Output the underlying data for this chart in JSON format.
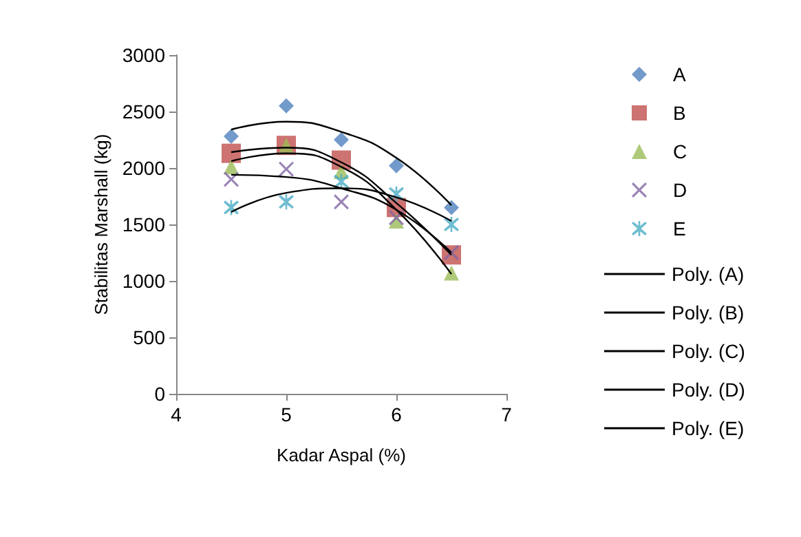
{
  "chart_data": {
    "type": "scatter",
    "xlabel": "Kadar Aspal (%)",
    "ylabel": "Stabilitas Marshall (kg)",
    "x": [
      4.5,
      5,
      5.5,
      6,
      6.5
    ],
    "xlim": [
      4,
      7
    ],
    "xticks": [
      4,
      5,
      6,
      7
    ],
    "ylim": [
      0,
      3000
    ],
    "yticks": [
      0,
      500,
      1000,
      1500,
      2000,
      2500,
      3000
    ],
    "grid": false,
    "legend": "right",
    "series": [
      {
        "name": "A",
        "color": "#4f81bd",
        "marker": "diamond",
        "values": [
          2280,
          2550,
          2250,
          2020,
          1650
        ]
      },
      {
        "name": "B",
        "color": "#c0504d",
        "marker": "square",
        "values": [
          2130,
          2200,
          2070,
          1650,
          1230
        ]
      },
      {
        "name": "C",
        "color": "#9bbb59",
        "marker": "triangle",
        "values": [
          2010,
          2200,
          1970,
          1530,
          1070
        ]
      },
      {
        "name": "D",
        "color": "#8064a2",
        "marker": "cross",
        "values": [
          1900,
          1990,
          1700,
          1560,
          1250
        ]
      },
      {
        "name": "E",
        "color": "#4bacc6",
        "marker": "star",
        "values": [
          1650,
          1700,
          1880,
          1770,
          1500
        ]
      },
      {
        "name": "Poly. (A)",
        "type": "line",
        "color": "#000000",
        "marker": "none",
        "x": [
          4.5,
          5,
          5.5,
          6,
          6.5
        ],
        "values": [
          2340,
          2410,
          2320,
          2090,
          1670
        ]
      },
      {
        "name": "Poly. (B)",
        "type": "line",
        "color": "#000000",
        "marker": "none",
        "x": [
          4.5,
          5,
          5.5,
          6,
          6.5
        ],
        "values": [
          2140,
          2180,
          2050,
          1690,
          1230
        ]
      },
      {
        "name": "Poly. (C)",
        "type": "line",
        "color": "#000000",
        "marker": "none",
        "x": [
          4.5,
          5,
          5.5,
          6,
          6.5
        ],
        "values": [
          2060,
          2130,
          2010,
          1630,
          1060
        ]
      },
      {
        "name": "Poly. (D)",
        "type": "line",
        "color": "#000000",
        "marker": "none",
        "x": [
          4.5,
          5,
          5.5,
          6,
          6.5
        ],
        "values": [
          1940,
          1920,
          1820,
          1630,
          1250
        ]
      },
      {
        "name": "Poly. (E)",
        "type": "line",
        "color": "#000000",
        "marker": "none",
        "x": [
          4.5,
          5,
          5.5,
          6,
          6.5
        ],
        "values": [
          1610,
          1780,
          1820,
          1740,
          1530
        ]
      }
    ]
  }
}
